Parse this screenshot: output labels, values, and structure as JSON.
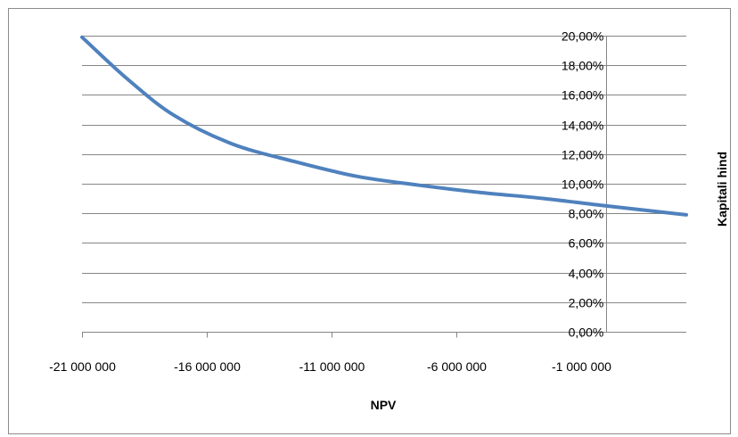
{
  "chart_data": {
    "type": "line",
    "xlabel": "NPV",
    "ylabel": "Kapitali hind",
    "xlim": [
      -21000000,
      3200000
    ],
    "ylim": [
      0,
      20
    ],
    "x_ticks": [
      {
        "value": -21000000,
        "label": "-21 000 000"
      },
      {
        "value": -16000000,
        "label": "-16 000 000"
      },
      {
        "value": -11000000,
        "label": "-11 000 000"
      },
      {
        "value": -6000000,
        "label": "-6 000 000"
      },
      {
        "value": -1000000,
        "label": "-1 000 000"
      }
    ],
    "y_ticks": [
      {
        "value": 0,
        "label": "0,00%"
      },
      {
        "value": 2,
        "label": "2,00%"
      },
      {
        "value": 4,
        "label": "4,00%"
      },
      {
        "value": 6,
        "label": "6,00%"
      },
      {
        "value": 8,
        "label": "8,00%"
      },
      {
        "value": 10,
        "label": "10,00%"
      },
      {
        "value": 12,
        "label": "12,00%"
      },
      {
        "value": 14,
        "label": "14,00%"
      },
      {
        "value": 16,
        "label": "16,00%"
      },
      {
        "value": 18,
        "label": "18,00%"
      },
      {
        "value": 20,
        "label": "20,00%"
      }
    ],
    "y_axis_crosses_x_at": 0,
    "grid": {
      "horizontal": true,
      "vertical": false
    },
    "series": [
      {
        "color": "#4f81bd",
        "x": [
          -21000000,
          -19200000,
          -17300000,
          -15000000,
          -12500000,
          -10000000,
          -7500000,
          -5000000,
          -2500000,
          0,
          3200000
        ],
        "y": [
          19.9,
          17.1,
          14.6,
          12.7,
          11.5,
          10.5,
          9.9,
          9.4,
          9.0,
          8.5,
          7.9
        ]
      }
    ],
    "colors": {
      "line": "#4f81bd",
      "grid": "#868686",
      "axis": "#868686"
    }
  }
}
